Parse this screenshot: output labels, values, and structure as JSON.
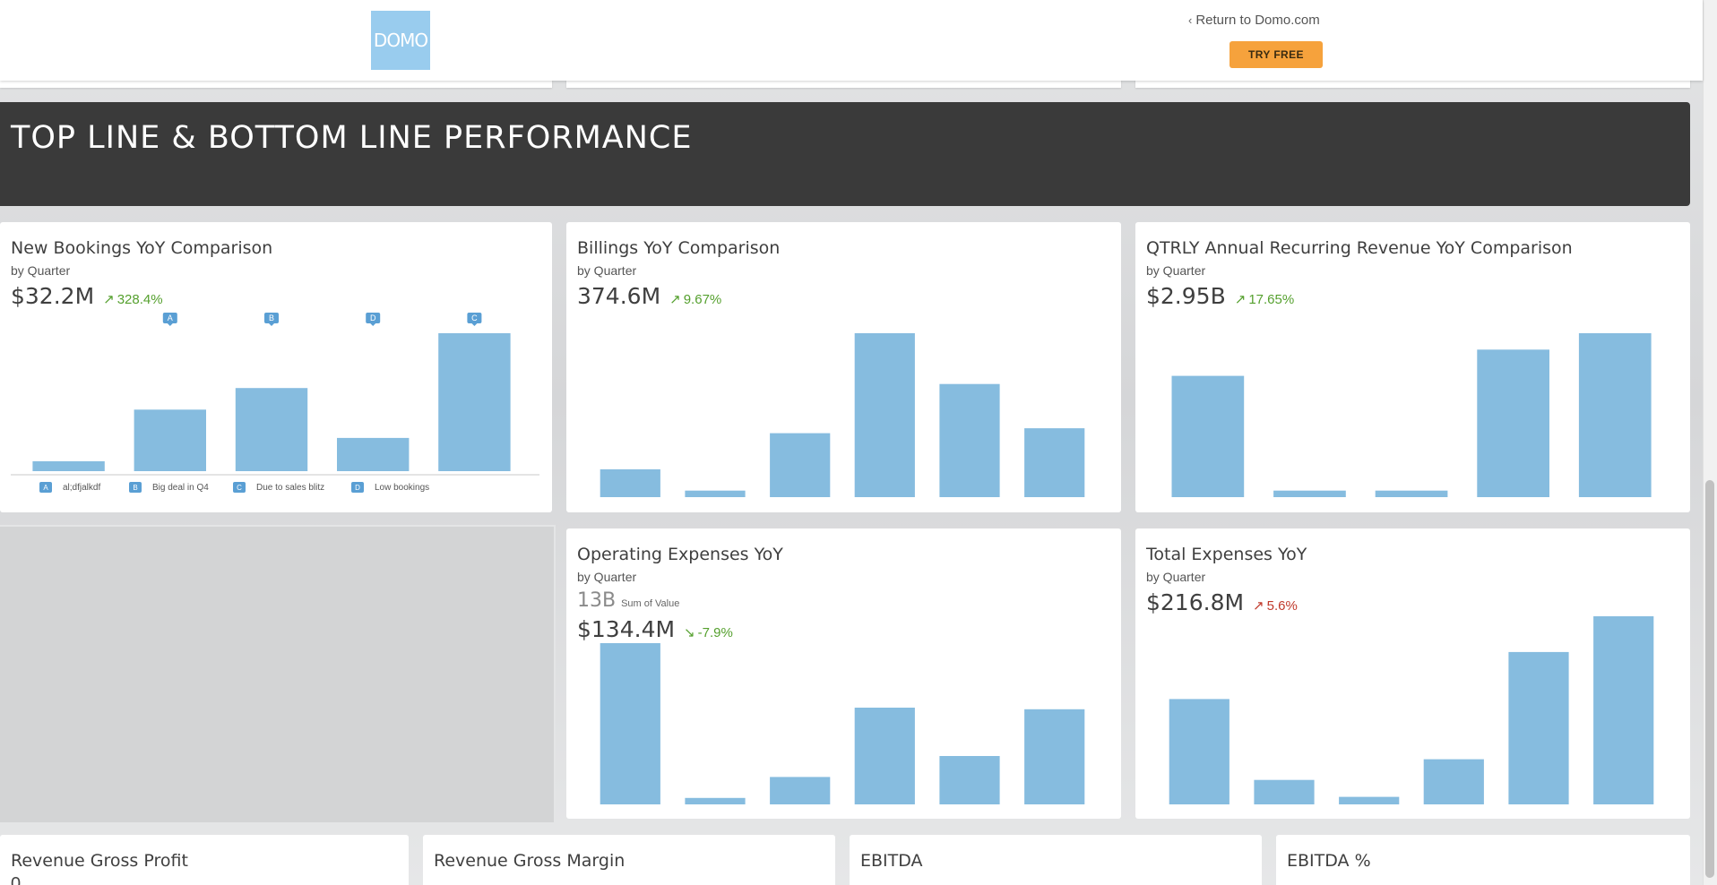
{
  "header": {
    "logo_text": "DOMO",
    "return_link": "Return to Domo.com",
    "try_free": "TRY FREE",
    "colors": {
      "logo_bg": "#99ccee",
      "try_free_bg": "#f6a23c"
    }
  },
  "section": {
    "title": "TOP LINE & BOTTOM LINE PERFORMANCE"
  },
  "colors": {
    "bar": "#86bcdf",
    "annotation": "#5a9fd4",
    "positive": "#55a02e",
    "negative": "#c0392b"
  },
  "cards": {
    "new_bookings": {
      "title": "New Bookings YoY Comparison",
      "subtitle": "by Quarter",
      "value": "$32.2M",
      "change": "328.4%",
      "change_arrow": "↗",
      "annotations": [
        {
          "badge": "A",
          "text": "al;dfjalkdf"
        },
        {
          "badge": "B",
          "text": "Big deal in Q4"
        },
        {
          "badge": "C",
          "text": "Due to sales blitz"
        },
        {
          "badge": "D",
          "text": "Low bookings"
        }
      ]
    },
    "billings": {
      "title": "Billings YoY Comparison",
      "subtitle": "by Quarter",
      "value": "374.6M",
      "change": "9.67%",
      "change_arrow": "↗"
    },
    "arr": {
      "title": "QTRLY Annual Recurring Revenue YoY Comparison",
      "subtitle": "by Quarter",
      "value": "$2.95B",
      "change": "17.65%",
      "change_arrow": "↗"
    },
    "opex": {
      "title": "Operating Expenses YoY",
      "subtitle": "by Quarter",
      "secondary_value": "13B",
      "secondary_label": "Sum of Value",
      "value": "$134.4M",
      "change": "-7.9%",
      "change_arrow": "↘"
    },
    "total_expenses": {
      "title": "Total Expenses YoY",
      "subtitle": "by Quarter",
      "value": "$216.8M",
      "change": "5.6%",
      "change_arrow": "↗"
    },
    "bottom": [
      {
        "title": "Revenue Gross Profit",
        "peek": "0"
      },
      {
        "title": "Revenue Gross Margin"
      },
      {
        "title": "EBITDA"
      },
      {
        "title": "EBITDA %"
      }
    ]
  },
  "chart_data": [
    {
      "id": "new_bookings",
      "type": "bar",
      "title": "New Bookings YoY Comparison",
      "values": [
        6,
        37,
        50,
        20,
        83
      ],
      "bar_annotations": [
        "",
        "A",
        "B",
        "D",
        "C"
      ],
      "ylim": [
        0,
        83
      ]
    },
    {
      "id": "billings",
      "type": "bar",
      "title": "Billings YoY Comparison",
      "values": [
        17,
        4,
        39,
        100,
        69,
        42
      ],
      "ylim": [
        0,
        100
      ]
    },
    {
      "id": "arr",
      "type": "bar",
      "title": "QTRLY Annual Recurring Revenue YoY Comparison",
      "values": [
        74,
        4,
        4,
        90,
        100
      ],
      "ylim": [
        0,
        100
      ]
    },
    {
      "id": "opex",
      "type": "bar",
      "title": "Operating Expenses YoY",
      "values": [
        100,
        4,
        17,
        60,
        30,
        59
      ],
      "ylim": [
        0,
        100
      ]
    },
    {
      "id": "total_expenses",
      "type": "bar",
      "title": "Total Expenses YoY",
      "values": [
        56,
        13,
        4,
        24,
        81,
        100
      ],
      "ylim": [
        0,
        100
      ]
    }
  ]
}
